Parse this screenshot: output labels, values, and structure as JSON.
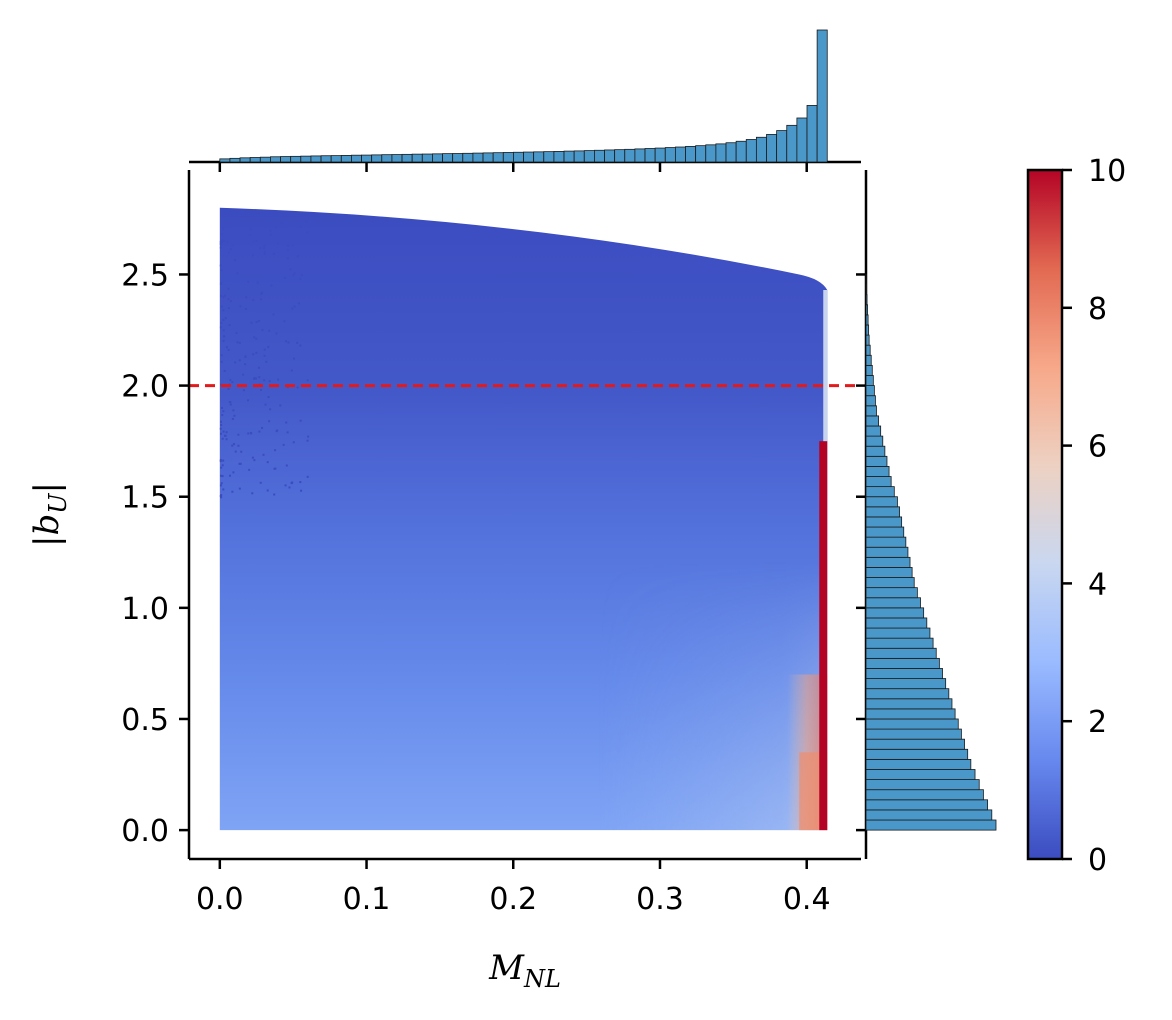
{
  "chart_data": {
    "type": "heatmap",
    "xlabel": {
      "main": "M",
      "sub": "NL"
    },
    "ylabel": {
      "main": "|b",
      "sub": "U",
      "close": "|"
    },
    "x_ticks": [
      "0.0",
      "0.1",
      "0.2",
      "0.3",
      "0.4"
    ],
    "x_tick_values": [
      0.0,
      0.1,
      0.2,
      0.3,
      0.4
    ],
    "y_ticks": [
      "0.0",
      "0.5",
      "1.0",
      "1.5",
      "2.0",
      "2.5"
    ],
    "y_tick_values": [
      0.0,
      0.5,
      1.0,
      1.5,
      2.0,
      2.5
    ],
    "xlim": [
      -0.021,
      0.437
    ],
    "ylim": [
      -0.13,
      2.97
    ],
    "data_extent": {
      "x": [
        0.0,
        0.414
      ],
      "y_max_at_x0": 2.8,
      "y_max_at_xmax": 2.43
    },
    "reference_line": {
      "y": 2.0,
      "color": "#e31a1c",
      "style": "dashed"
    },
    "colormap": "coolwarm",
    "colormap_stops": [
      "#3b4cc0",
      "#6788ee",
      "#9abbff",
      "#c9d7f0",
      "#edd1c2",
      "#f7a889",
      "#e26952",
      "#b40426"
    ],
    "colorbar": {
      "min": 0,
      "max": 10,
      "ticks": [
        "0",
        "2",
        "4",
        "6",
        "8",
        "10"
      ],
      "tick_values": [
        0,
        2,
        4,
        6,
        8,
        10
      ]
    },
    "marginal_x": {
      "type": "histogram",
      "color": "#4a98c9",
      "bin_range": [
        0.0,
        0.414
      ],
      "counts": [
        3,
        3.5,
        4,
        4.3,
        4.6,
        5,
        5.2,
        5.4,
        5.6,
        5.8,
        6,
        6.1,
        6.3,
        6.5,
        6.6,
        6.8,
        7,
        7.1,
        7.3,
        7.5,
        7.6,
        7.8,
        8,
        8.1,
        8.3,
        8.5,
        8.7,
        8.9,
        9.1,
        9.3,
        9.5,
        9.7,
        9.9,
        10.1,
        10.4,
        10.6,
        10.9,
        11.2,
        11.5,
        11.8,
        12.1,
        12.5,
        12.9,
        13.3,
        13.8,
        14.3,
        14.9,
        15.6,
        16.4,
        17.3,
        18.4,
        19.8,
        21.5,
        23.6,
        26.3,
        30,
        35,
        42,
        54,
        126
      ],
      "max_count": 126
    },
    "marginal_y": {
      "type": "histogram",
      "orientation": "horizontal",
      "color": "#4a98c9",
      "bin_range": [
        0.0,
        2.5
      ],
      "counts": [
        124,
        120,
        116,
        112,
        108,
        104,
        100,
        97,
        94,
        91,
        88,
        85,
        82,
        79,
        76,
        73,
        70,
        67,
        64,
        61,
        58,
        55,
        52,
        49,
        46,
        44,
        42,
        40,
        38,
        36,
        34,
        32,
        30,
        27,
        24,
        22,
        20,
        18,
        16,
        14,
        12,
        10,
        9,
        8,
        7,
        6,
        5,
        4,
        3,
        2.5,
        2,
        1.5,
        1,
        0.6,
        0.3
      ],
      "max_count": 124
    }
  }
}
